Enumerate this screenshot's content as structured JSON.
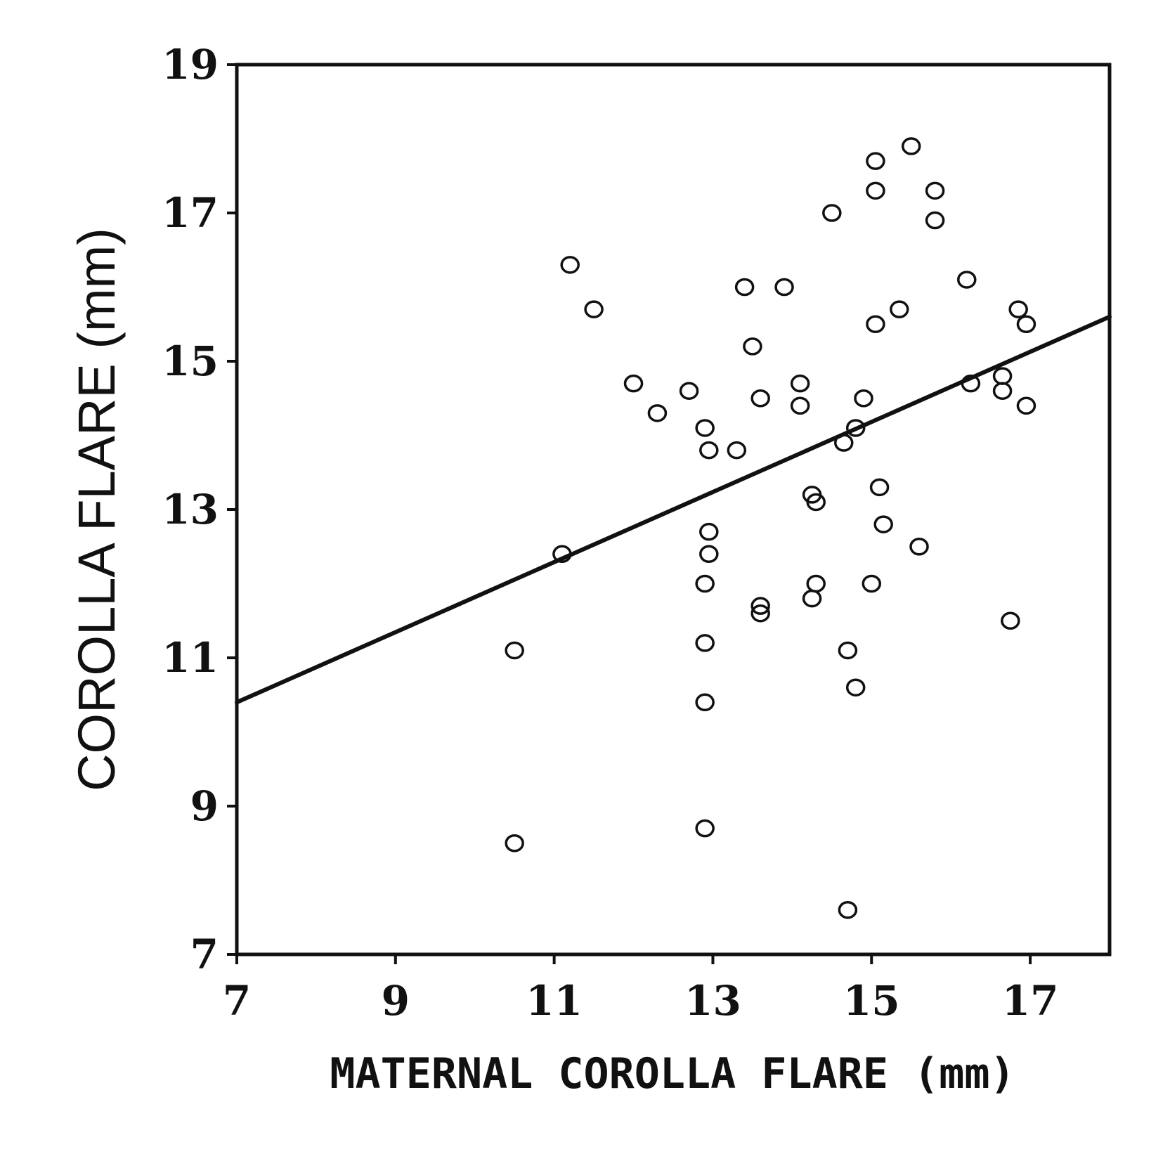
{
  "chart_data": {
    "type": "scatter",
    "xlabel": "MATERNAL COROLLA FLARE (mm)",
    "ylabel": "COROLLA FLARE (mm)",
    "xlim": [
      7,
      18
    ],
    "ylim": [
      7,
      19
    ],
    "x_ticks": [
      7,
      9,
      11,
      13,
      15,
      17
    ],
    "y_ticks": [
      7,
      9,
      11,
      13,
      15,
      17,
      19
    ],
    "grid": false,
    "series": [
      {
        "marker": "open-circle",
        "points": [
          [
            10.5,
            11.1
          ],
          [
            10.5,
            8.5
          ],
          [
            11.1,
            12.4
          ],
          [
            11.2,
            16.3
          ],
          [
            11.5,
            15.7
          ],
          [
            12.0,
            14.7
          ],
          [
            12.3,
            14.3
          ],
          [
            12.7,
            14.6
          ],
          [
            12.9,
            14.1
          ],
          [
            12.9,
            11.2
          ],
          [
            12.9,
            10.4
          ],
          [
            12.9,
            8.7
          ],
          [
            12.95,
            13.8
          ],
          [
            12.95,
            12.7
          ],
          [
            12.95,
            12.4
          ],
          [
            12.9,
            12.0
          ],
          [
            13.3,
            13.8
          ],
          [
            13.4,
            16.0
          ],
          [
            13.5,
            15.2
          ],
          [
            13.6,
            14.5
          ],
          [
            13.6,
            11.7
          ],
          [
            13.6,
            11.6
          ],
          [
            13.9,
            16.0
          ],
          [
            14.1,
            14.7
          ],
          [
            14.1,
            14.4
          ],
          [
            14.25,
            13.2
          ],
          [
            14.3,
            13.1
          ],
          [
            14.3,
            12.0
          ],
          [
            14.25,
            11.8
          ],
          [
            14.5,
            17.0
          ],
          [
            14.65,
            13.9
          ],
          [
            14.8,
            14.1
          ],
          [
            14.9,
            14.5
          ],
          [
            14.7,
            11.1
          ],
          [
            14.8,
            10.6
          ],
          [
            14.7,
            7.6
          ],
          [
            15.0,
            12.0
          ],
          [
            15.05,
            17.7
          ],
          [
            15.05,
            17.3
          ],
          [
            15.05,
            15.5
          ],
          [
            15.1,
            13.3
          ],
          [
            15.15,
            12.8
          ],
          [
            15.35,
            15.7
          ],
          [
            15.5,
            17.9
          ],
          [
            15.6,
            12.5
          ],
          [
            15.8,
            17.3
          ],
          [
            15.8,
            16.9
          ],
          [
            16.2,
            16.1
          ],
          [
            16.25,
            14.7
          ],
          [
            16.65,
            14.8
          ],
          [
            16.65,
            14.6
          ],
          [
            16.85,
            15.7
          ],
          [
            16.95,
            15.5
          ],
          [
            16.95,
            14.4
          ],
          [
            16.75,
            11.5
          ]
        ]
      }
    ],
    "trend_line": {
      "type": "linear",
      "from": [
        7,
        10.4
      ],
      "to": [
        18,
        15.6
      ]
    }
  }
}
